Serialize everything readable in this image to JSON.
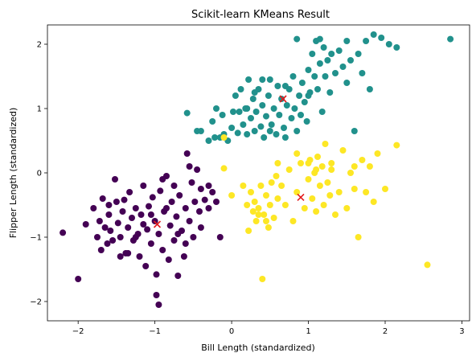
{
  "chart_data": {
    "type": "scatter",
    "title": "Scikit-learn KMeans Result",
    "xlabel": "Bill Length (standardized)",
    "ylabel": "Flipper Length (standardized)",
    "xlim": [
      -2.4,
      3.1
    ],
    "ylim": [
      -2.3,
      2.3
    ],
    "xticks": [
      -2,
      -1,
      0,
      1,
      2,
      3
    ],
    "yticks": [
      -2,
      -1,
      0,
      1,
      2
    ],
    "xtick_labels": [
      "−2",
      "−1",
      "0",
      "1",
      "2",
      "3"
    ],
    "ytick_labels": [
      "−2",
      "−1",
      "0",
      "1",
      "2"
    ],
    "grid": false,
    "series": [
      {
        "color": "#440154",
        "points": [
          [
            -2.2,
            -0.93
          ],
          [
            -2.0,
            -1.65
          ],
          [
            -1.9,
            -0.8
          ],
          [
            -1.8,
            -0.55
          ],
          [
            -1.75,
            -1.0
          ],
          [
            -1.72,
            -0.75
          ],
          [
            -1.7,
            -1.2
          ],
          [
            -1.68,
            -0.4
          ],
          [
            -1.65,
            -0.85
          ],
          [
            -1.62,
            -1.1
          ],
          [
            -1.6,
            -0.65
          ],
          [
            -1.58,
            -0.9
          ],
          [
            -1.55,
            -1.05
          ],
          [
            -1.52,
            -0.1
          ],
          [
            -1.5,
            -0.45
          ],
          [
            -1.48,
            -0.78
          ],
          [
            -1.45,
            -1.0
          ],
          [
            -1.42,
            -0.6
          ],
          [
            -1.4,
            -0.42
          ],
          [
            -1.38,
            -1.25
          ],
          [
            -1.35,
            -0.85
          ],
          [
            -1.33,
            -0.3
          ],
          [
            -1.3,
            -0.7
          ],
          [
            -1.28,
            -1.05
          ],
          [
            -1.25,
            -0.55
          ],
          [
            -1.22,
            -0.95
          ],
          [
            -1.2,
            -1.3
          ],
          [
            -1.18,
            -0.65
          ],
          [
            -1.15,
            -0.2
          ],
          [
            -1.12,
            -1.45
          ],
          [
            -1.1,
            -0.88
          ],
          [
            -1.08,
            -0.52
          ],
          [
            -1.05,
            -1.1
          ],
          [
            -1.03,
            -0.38
          ],
          [
            -1.0,
            -0.75
          ],
          [
            -0.98,
            -1.58
          ],
          [
            -0.95,
            -0.95
          ],
          [
            -0.93,
            -0.28
          ],
          [
            -0.9,
            -1.2
          ],
          [
            -0.88,
            -0.6
          ],
          [
            -0.85,
            -0.05
          ],
          [
            -0.82,
            -1.35
          ],
          [
            -0.8,
            -0.82
          ],
          [
            -0.78,
            -0.45
          ],
          [
            -0.75,
            -1.05
          ],
          [
            -0.72,
            -0.68
          ],
          [
            -0.7,
            -1.6
          ],
          [
            -0.68,
            -0.35
          ],
          [
            -0.65,
            -0.9
          ],
          [
            -0.62,
            -1.3
          ],
          [
            -0.6,
            -0.55
          ],
          [
            -0.58,
            0.3
          ],
          [
            -0.55,
            -0.75
          ],
          [
            -0.52,
            -0.15
          ],
          [
            -0.5,
            -1.0
          ],
          [
            -0.48,
            -0.45
          ],
          [
            -0.45,
            0.05
          ],
          [
            -0.42,
            -0.6
          ],
          [
            -0.4,
            -0.25
          ],
          [
            -0.35,
            -0.42
          ],
          [
            -0.3,
            -0.55
          ],
          [
            -0.25,
            -0.3
          ],
          [
            -0.2,
            -0.45
          ],
          [
            -0.15,
            -1.0
          ],
          [
            -1.25,
            -1.0
          ],
          [
            -1.05,
            -0.65
          ],
          [
            -0.9,
            -0.1
          ],
          [
            -0.7,
            -0.95
          ],
          [
            -1.15,
            -0.8
          ],
          [
            -0.95,
            -2.05
          ],
          [
            -0.98,
            -1.9
          ],
          [
            -1.35,
            -1.25
          ],
          [
            -1.6,
            -0.5
          ],
          [
            -1.45,
            -1.3
          ],
          [
            -0.6,
            -1.1
          ],
          [
            -0.85,
            -0.55
          ],
          [
            -0.4,
            -0.85
          ],
          [
            -0.3,
            -0.2
          ],
          [
            -0.75,
            -0.2
          ],
          [
            -0.55,
            0.1
          ]
        ]
      },
      {
        "color": "#21918c",
        "points": [
          [
            -0.58,
            0.93
          ],
          [
            -0.45,
            0.65
          ],
          [
            -0.4,
            0.65
          ],
          [
            -0.3,
            0.5
          ],
          [
            -0.25,
            0.8
          ],
          [
            -0.22,
            0.55
          ],
          [
            -0.2,
            1.0
          ],
          [
            -0.15,
            0.55
          ],
          [
            -0.12,
            0.9
          ],
          [
            -0.1,
            0.6
          ],
          [
            -0.05,
            0.5
          ],
          [
            0.0,
            0.7
          ],
          [
            0.02,
            0.95
          ],
          [
            0.05,
            1.2
          ],
          [
            0.08,
            0.62
          ],
          [
            0.1,
            0.95
          ],
          [
            0.12,
            1.3
          ],
          [
            0.15,
            0.75
          ],
          [
            0.18,
            1.0
          ],
          [
            0.2,
            0.6
          ],
          [
            0.22,
            1.45
          ],
          [
            0.25,
            0.85
          ],
          [
            0.28,
            1.15
          ],
          [
            0.3,
            0.65
          ],
          [
            0.32,
            0.95
          ],
          [
            0.35,
            1.3
          ],
          [
            0.38,
            0.72
          ],
          [
            0.4,
            1.05
          ],
          [
            0.42,
            0.55
          ],
          [
            0.45,
            0.88
          ],
          [
            0.48,
            1.2
          ],
          [
            0.5,
            1.45
          ],
          [
            0.52,
            0.75
          ],
          [
            0.55,
            1.0
          ],
          [
            0.58,
            0.6
          ],
          [
            0.6,
            1.35
          ],
          [
            0.62,
            0.9
          ],
          [
            0.65,
            1.15
          ],
          [
            0.68,
            0.7
          ],
          [
            0.7,
            0.55
          ],
          [
            0.72,
            1.05
          ],
          [
            0.75,
            1.3
          ],
          [
            0.78,
            0.85
          ],
          [
            0.8,
            1.5
          ],
          [
            0.82,
            1.0
          ],
          [
            0.85,
            0.65
          ],
          [
            0.88,
            1.2
          ],
          [
            0.9,
            0.9
          ],
          [
            0.92,
            1.4
          ],
          [
            0.95,
            1.1
          ],
          [
            0.98,
            0.8
          ],
          [
            1.0,
            1.6
          ],
          [
            1.02,
            1.25
          ],
          [
            1.05,
            1.85
          ],
          [
            1.08,
            1.5
          ],
          [
            1.1,
            2.05
          ],
          [
            1.12,
            1.3
          ],
          [
            1.15,
            1.7
          ],
          [
            1.18,
            0.95
          ],
          [
            1.2,
            1.95
          ],
          [
            1.22,
            1.5
          ],
          [
            1.25,
            1.75
          ],
          [
            1.28,
            1.25
          ],
          [
            1.3,
            1.85
          ],
          [
            1.35,
            1.55
          ],
          [
            1.4,
            1.9
          ],
          [
            1.45,
            1.65
          ],
          [
            1.5,
            1.4
          ],
          [
            1.55,
            1.75
          ],
          [
            1.6,
            0.65
          ],
          [
            1.65,
            1.85
          ],
          [
            1.7,
            1.55
          ],
          [
            1.75,
            2.05
          ],
          [
            1.8,
            1.3
          ],
          [
            1.85,
            2.15
          ],
          [
            1.95,
            2.1
          ],
          [
            2.05,
            2.0
          ],
          [
            2.15,
            1.95
          ],
          [
            2.85,
            2.08
          ],
          [
            0.85,
            2.08
          ],
          [
            1.5,
            2.05
          ],
          [
            1.15,
            2.08
          ],
          [
            0.4,
            1.45
          ],
          [
            0.2,
            1.0
          ],
          [
            0.5,
            0.65
          ],
          [
            1.0,
            1.2
          ],
          [
            0.7,
            1.35
          ],
          [
            0.3,
            1.25
          ]
        ]
      },
      {
        "color": "#fde725",
        "points": [
          [
            -0.1,
            0.07
          ],
          [
            -0.1,
            0.55
          ],
          [
            0.0,
            -0.35
          ],
          [
            0.15,
            -0.2
          ],
          [
            0.2,
            -0.5
          ],
          [
            0.22,
            -0.9
          ],
          [
            0.25,
            -0.3
          ],
          [
            0.28,
            -0.6
          ],
          [
            0.3,
            -0.45
          ],
          [
            0.32,
            -0.75
          ],
          [
            0.35,
            -0.55
          ],
          [
            0.38,
            -0.2
          ],
          [
            0.4,
            -1.65
          ],
          [
            0.42,
            -0.65
          ],
          [
            0.45,
            -0.35
          ],
          [
            0.48,
            -0.85
          ],
          [
            0.5,
            -0.5
          ],
          [
            0.52,
            -0.15
          ],
          [
            0.55,
            -0.7
          ],
          [
            0.58,
            -0.05
          ],
          [
            0.6,
            -0.4
          ],
          [
            0.65,
            -0.2
          ],
          [
            0.7,
            -0.5
          ],
          [
            0.75,
            0.05
          ],
          [
            0.8,
            -0.75
          ],
          [
            0.85,
            -0.3
          ],
          [
            0.9,
            0.15
          ],
          [
            0.95,
            -0.55
          ],
          [
            1.0,
            -0.1
          ],
          [
            1.02,
            0.2
          ],
          [
            1.05,
            -0.4
          ],
          [
            1.08,
            0.0
          ],
          [
            1.1,
            -0.6
          ],
          [
            1.12,
            0.25
          ],
          [
            1.15,
            -0.2
          ],
          [
            1.18,
            0.1
          ],
          [
            1.2,
            -0.5
          ],
          [
            1.22,
            0.45
          ],
          [
            1.25,
            -0.15
          ],
          [
            1.28,
            -0.35
          ],
          [
            1.3,
            0.15
          ],
          [
            1.35,
            -0.65
          ],
          [
            1.4,
            -0.3
          ],
          [
            1.45,
            0.35
          ],
          [
            1.5,
            -0.55
          ],
          [
            1.55,
            0.0
          ],
          [
            1.6,
            -0.25
          ],
          [
            1.65,
            -1.0
          ],
          [
            1.7,
            0.2
          ],
          [
            1.75,
            -0.3
          ],
          [
            1.8,
            0.1
          ],
          [
            1.85,
            -0.45
          ],
          [
            1.9,
            0.3
          ],
          [
            2.0,
            -0.25
          ],
          [
            2.15,
            0.43
          ],
          [
            2.55,
            -1.43
          ],
          [
            1.3,
            0.05
          ],
          [
            1.0,
            0.15
          ],
          [
            0.6,
            0.15
          ],
          [
            1.6,
            0.1
          ],
          [
            0.35,
            -0.65
          ],
          [
            0.45,
            -0.75
          ],
          [
            1.1,
            0.05
          ],
          [
            0.85,
            0.3
          ]
        ]
      }
    ],
    "centroids": [
      {
        "x": -0.97,
        "y": -0.8,
        "color": "#e31a1c"
      },
      {
        "x": 0.67,
        "y": 1.15,
        "color": "#e31a1c"
      },
      {
        "x": 0.9,
        "y": -0.38,
        "color": "#e31a1c"
      }
    ]
  }
}
